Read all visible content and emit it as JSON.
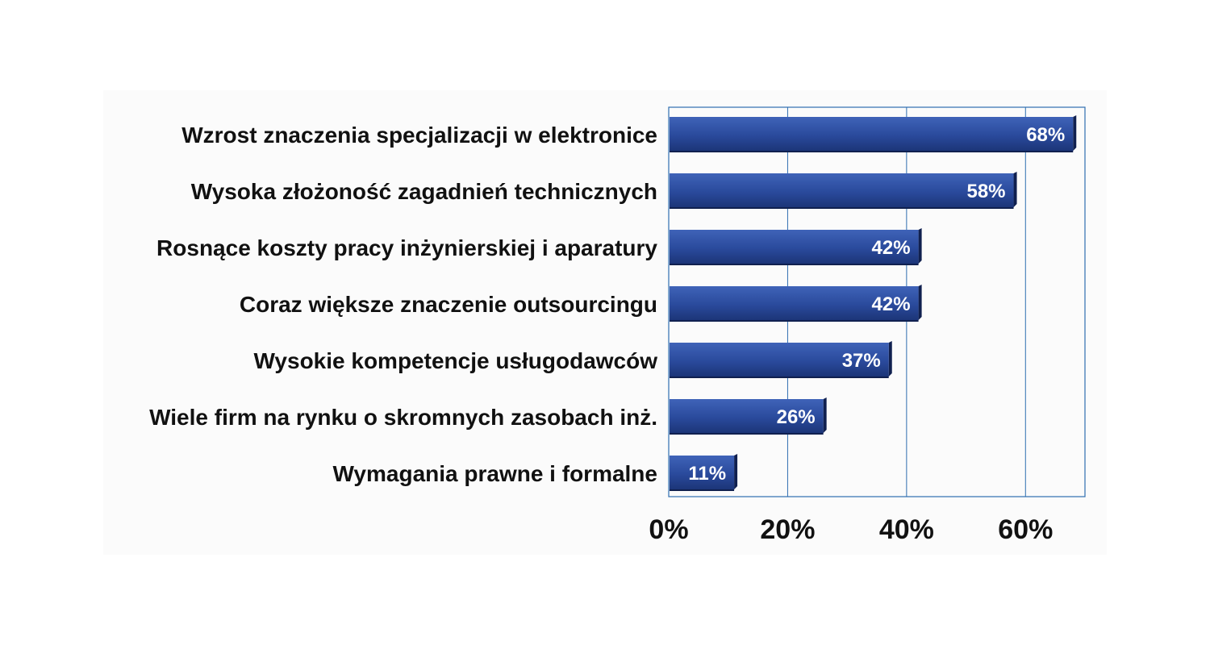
{
  "chart_data": {
    "type": "bar",
    "orientation": "horizontal",
    "categories": [
      "Wzrost znaczenia specjalizacji w elektronice",
      "Wysoka złożoność zagadnień technicznych",
      "Rosnące koszty pracy inżynierskiej i aparatury",
      "Coraz większe znaczenie outsourcingu",
      "Wysokie kompetencje usługodawców",
      "Wiele firm na rynku o skromnych zasobach inż.",
      "Wymagania prawne i formalne"
    ],
    "values": [
      68,
      58,
      42,
      42,
      37,
      26,
      11
    ],
    "data_labels": [
      "68%",
      "58%",
      "42%",
      "42%",
      "37%",
      "26%",
      "11%"
    ],
    "xlim": [
      0,
      70
    ],
    "xticks": [
      0,
      20,
      40,
      60
    ],
    "xtick_labels": [
      "0%",
      "20%",
      "40%",
      "60%"
    ],
    "grid": true,
    "colors": {
      "bar": "#2a4a9c",
      "bar_light": "#3f63b8",
      "bar_dark": "#1c3578",
      "bar_shadow": "#10204f",
      "grid": "#2f6fb0",
      "text": "#111111",
      "bar_label": "#ffffff"
    }
  }
}
